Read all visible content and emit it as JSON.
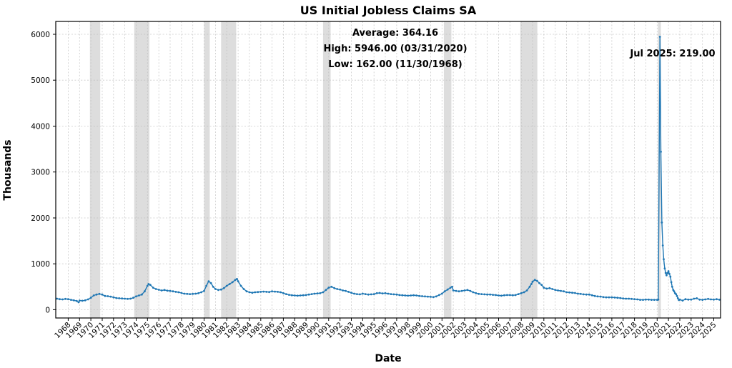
{
  "chart_data": {
    "type": "line",
    "title": "US Initial Jobless Claims SA",
    "xlabel": "Date",
    "ylabel": "Thousands",
    "xlim": [
      1966.9,
      2025.6
    ],
    "ylim": [
      -180,
      6280
    ],
    "yticks": [
      0,
      1000,
      2000,
      3000,
      4000,
      5000,
      6000
    ],
    "xticks": [
      1968,
      1969,
      1970,
      1971,
      1972,
      1973,
      1974,
      1975,
      1976,
      1977,
      1978,
      1979,
      1980,
      1981,
      1982,
      1983,
      1984,
      1985,
      1986,
      1987,
      1988,
      1989,
      1990,
      1991,
      1992,
      1993,
      1994,
      1995,
      1996,
      1997,
      1998,
      1999,
      2000,
      2001,
      2002,
      2003,
      2004,
      2005,
      2006,
      2007,
      2008,
      2009,
      2010,
      2011,
      2012,
      2013,
      2014,
      2015,
      2016,
      2017,
      2018,
      2019,
      2020,
      2021,
      2022,
      2023,
      2024,
      2025
    ],
    "grid": true,
    "legend": false,
    "line_color": "#1f77b4",
    "band_color": "#cfcfcf",
    "annotations": {
      "average": "Average: 364.16",
      "high": "High: 5946.00 (03/31/2020)",
      "low": "Low: 162.00 (11/30/1968)",
      "latest": "Jul 2025: 219.00"
    },
    "recession_bands": [
      [
        1969.92,
        1970.83
      ],
      [
        1973.83,
        1975.17
      ],
      [
        1980.0,
        1980.5
      ],
      [
        1981.5,
        1982.83
      ],
      [
        1990.5,
        1991.17
      ],
      [
        2001.17,
        2001.83
      ],
      [
        2007.92,
        2009.42
      ],
      [
        2020.08,
        2020.33
      ]
    ],
    "series": [
      {
        "name": "US Initial Jobless Claims SA",
        "points": [
          [
            1967.0,
            240
          ],
          [
            1967.25,
            230
          ],
          [
            1967.5,
            225
          ],
          [
            1967.75,
            235
          ],
          [
            1968.0,
            230
          ],
          [
            1968.25,
            215
          ],
          [
            1968.5,
            205
          ],
          [
            1968.75,
            190
          ],
          [
            1968.92,
            162
          ],
          [
            1969.0,
            200
          ],
          [
            1969.25,
            195
          ],
          [
            1969.5,
            205
          ],
          [
            1969.75,
            225
          ],
          [
            1970.0,
            260
          ],
          [
            1970.25,
            310
          ],
          [
            1970.5,
            330
          ],
          [
            1970.75,
            345
          ],
          [
            1971.0,
            330
          ],
          [
            1971.25,
            300
          ],
          [
            1971.5,
            295
          ],
          [
            1971.75,
            285
          ],
          [
            1972.0,
            270
          ],
          [
            1972.25,
            255
          ],
          [
            1972.5,
            250
          ],
          [
            1972.75,
            245
          ],
          [
            1973.0,
            240
          ],
          [
            1973.25,
            235
          ],
          [
            1973.5,
            240
          ],
          [
            1973.75,
            260
          ],
          [
            1974.0,
            290
          ],
          [
            1974.25,
            310
          ],
          [
            1974.5,
            330
          ],
          [
            1974.75,
            400
          ],
          [
            1975.0,
            520
          ],
          [
            1975.1,
            560
          ],
          [
            1975.25,
            540
          ],
          [
            1975.5,
            480
          ],
          [
            1975.75,
            450
          ],
          [
            1976.0,
            435
          ],
          [
            1976.25,
            420
          ],
          [
            1976.5,
            430
          ],
          [
            1976.75,
            415
          ],
          [
            1977.0,
            410
          ],
          [
            1977.25,
            400
          ],
          [
            1977.5,
            390
          ],
          [
            1977.75,
            380
          ],
          [
            1978.0,
            365
          ],
          [
            1978.25,
            350
          ],
          [
            1978.5,
            345
          ],
          [
            1978.75,
            340
          ],
          [
            1979.0,
            345
          ],
          [
            1979.25,
            350
          ],
          [
            1979.5,
            360
          ],
          [
            1979.75,
            380
          ],
          [
            1980.0,
            410
          ],
          [
            1980.2,
            520
          ],
          [
            1980.4,
            620
          ],
          [
            1980.6,
            580
          ],
          [
            1980.8,
            500
          ],
          [
            1981.0,
            450
          ],
          [
            1981.25,
            430
          ],
          [
            1981.5,
            440
          ],
          [
            1981.75,
            470
          ],
          [
            1982.0,
            520
          ],
          [
            1982.25,
            560
          ],
          [
            1982.5,
            600
          ],
          [
            1982.75,
            650
          ],
          [
            1982.9,
            670
          ],
          [
            1983.0,
            620
          ],
          [
            1983.25,
            520
          ],
          [
            1983.5,
            450
          ],
          [
            1983.75,
            400
          ],
          [
            1984.0,
            380
          ],
          [
            1984.25,
            370
          ],
          [
            1984.5,
            380
          ],
          [
            1984.75,
            385
          ],
          [
            1985.0,
            390
          ],
          [
            1985.25,
            395
          ],
          [
            1985.5,
            390
          ],
          [
            1985.75,
            385
          ],
          [
            1986.0,
            400
          ],
          [
            1986.25,
            395
          ],
          [
            1986.5,
            390
          ],
          [
            1986.75,
            380
          ],
          [
            1987.0,
            360
          ],
          [
            1987.25,
            340
          ],
          [
            1987.5,
            325
          ],
          [
            1987.75,
            315
          ],
          [
            1988.0,
            310
          ],
          [
            1988.25,
            305
          ],
          [
            1988.5,
            310
          ],
          [
            1988.75,
            315
          ],
          [
            1989.0,
            320
          ],
          [
            1989.25,
            330
          ],
          [
            1989.5,
            340
          ],
          [
            1989.75,
            350
          ],
          [
            1990.0,
            355
          ],
          [
            1990.25,
            360
          ],
          [
            1990.5,
            380
          ],
          [
            1990.75,
            430
          ],
          [
            1991.0,
            480
          ],
          [
            1991.25,
            500
          ],
          [
            1991.5,
            470
          ],
          [
            1991.75,
            450
          ],
          [
            1992.0,
            440
          ],
          [
            1992.25,
            420
          ],
          [
            1992.5,
            410
          ],
          [
            1992.75,
            390
          ],
          [
            1993.0,
            370
          ],
          [
            1993.25,
            350
          ],
          [
            1993.5,
            340
          ],
          [
            1993.75,
            335
          ],
          [
            1994.0,
            350
          ],
          [
            1994.25,
            340
          ],
          [
            1994.5,
            330
          ],
          [
            1994.75,
            335
          ],
          [
            1995.0,
            340
          ],
          [
            1995.25,
            360
          ],
          [
            1995.5,
            365
          ],
          [
            1995.75,
            355
          ],
          [
            1996.0,
            360
          ],
          [
            1996.25,
            350
          ],
          [
            1996.5,
            340
          ],
          [
            1996.75,
            335
          ],
          [
            1997.0,
            330
          ],
          [
            1997.25,
            320
          ],
          [
            1997.5,
            315
          ],
          [
            1997.75,
            310
          ],
          [
            1998.0,
            305
          ],
          [
            1998.25,
            310
          ],
          [
            1998.5,
            315
          ],
          [
            1998.75,
            310
          ],
          [
            1999.0,
            300
          ],
          [
            1999.25,
            295
          ],
          [
            1999.5,
            290
          ],
          [
            1999.75,
            285
          ],
          [
            2000.0,
            280
          ],
          [
            2000.25,
            275
          ],
          [
            2000.5,
            290
          ],
          [
            2000.75,
            320
          ],
          [
            2001.0,
            350
          ],
          [
            2001.25,
            400
          ],
          [
            2001.5,
            440
          ],
          [
            2001.75,
            480
          ],
          [
            2001.9,
            500
          ],
          [
            2002.0,
            420
          ],
          [
            2002.25,
            410
          ],
          [
            2002.5,
            400
          ],
          [
            2002.75,
            410
          ],
          [
            2003.0,
            420
          ],
          [
            2003.25,
            430
          ],
          [
            2003.5,
            410
          ],
          [
            2003.75,
            380
          ],
          [
            2004.0,
            360
          ],
          [
            2004.25,
            345
          ],
          [
            2004.5,
            340
          ],
          [
            2004.75,
            335
          ],
          [
            2005.0,
            330
          ],
          [
            2005.25,
            330
          ],
          [
            2005.5,
            325
          ],
          [
            2005.75,
            320
          ],
          [
            2006.0,
            310
          ],
          [
            2006.25,
            305
          ],
          [
            2006.5,
            315
          ],
          [
            2006.75,
            320
          ],
          [
            2007.0,
            320
          ],
          [
            2007.25,
            315
          ],
          [
            2007.5,
            320
          ],
          [
            2007.75,
            340
          ],
          [
            2008.0,
            360
          ],
          [
            2008.25,
            380
          ],
          [
            2008.5,
            420
          ],
          [
            2008.75,
            500
          ],
          [
            2008.9,
            560
          ],
          [
            2009.0,
            610
          ],
          [
            2009.2,
            650
          ],
          [
            2009.4,
            630
          ],
          [
            2009.6,
            580
          ],
          [
            2009.8,
            540
          ],
          [
            2010.0,
            480
          ],
          [
            2010.25,
            460
          ],
          [
            2010.5,
            470
          ],
          [
            2010.75,
            450
          ],
          [
            2011.0,
            430
          ],
          [
            2011.25,
            420
          ],
          [
            2011.5,
            410
          ],
          [
            2011.75,
            400
          ],
          [
            2012.0,
            380
          ],
          [
            2012.25,
            375
          ],
          [
            2012.5,
            370
          ],
          [
            2012.75,
            365
          ],
          [
            2013.0,
            350
          ],
          [
            2013.25,
            345
          ],
          [
            2013.5,
            335
          ],
          [
            2013.75,
            330
          ],
          [
            2014.0,
            330
          ],
          [
            2014.25,
            315
          ],
          [
            2014.5,
            300
          ],
          [
            2014.75,
            290
          ],
          [
            2015.0,
            285
          ],
          [
            2015.25,
            275
          ],
          [
            2015.5,
            270
          ],
          [
            2015.75,
            270
          ],
          [
            2016.0,
            270
          ],
          [
            2016.25,
            265
          ],
          [
            2016.5,
            260
          ],
          [
            2016.75,
            255
          ],
          [
            2017.0,
            245
          ],
          [
            2017.25,
            240
          ],
          [
            2017.5,
            240
          ],
          [
            2017.75,
            235
          ],
          [
            2018.0,
            230
          ],
          [
            2018.25,
            225
          ],
          [
            2018.5,
            215
          ],
          [
            2018.75,
            215
          ],
          [
            2019.0,
            220
          ],
          [
            2019.25,
            220
          ],
          [
            2019.5,
            215
          ],
          [
            2019.75,
            215
          ],
          [
            2020.0,
            215
          ],
          [
            2020.1,
            220
          ],
          [
            2020.25,
            5946
          ],
          [
            2020.33,
            3440
          ],
          [
            2020.42,
            1900
          ],
          [
            2020.5,
            1400
          ],
          [
            2020.58,
            1100
          ],
          [
            2020.67,
            900
          ],
          [
            2020.75,
            800
          ],
          [
            2020.83,
            750
          ],
          [
            2020.92,
            800
          ],
          [
            2021.0,
            840
          ],
          [
            2021.08,
            780
          ],
          [
            2021.17,
            720
          ],
          [
            2021.25,
            600
          ],
          [
            2021.33,
            500
          ],
          [
            2021.42,
            430
          ],
          [
            2021.5,
            400
          ],
          [
            2021.58,
            360
          ],
          [
            2021.67,
            340
          ],
          [
            2021.75,
            300
          ],
          [
            2021.83,
            250
          ],
          [
            2021.92,
            210
          ],
          [
            2022.0,
            220
          ],
          [
            2022.25,
            200
          ],
          [
            2022.5,
            230
          ],
          [
            2022.75,
            220
          ],
          [
            2023.0,
            220
          ],
          [
            2023.25,
            240
          ],
          [
            2023.5,
            250
          ],
          [
            2023.75,
            220
          ],
          [
            2024.0,
            215
          ],
          [
            2024.25,
            225
          ],
          [
            2024.5,
            235
          ],
          [
            2024.75,
            225
          ],
          [
            2025.0,
            220
          ],
          [
            2025.25,
            230
          ],
          [
            2025.5,
            219
          ]
        ]
      }
    ]
  }
}
